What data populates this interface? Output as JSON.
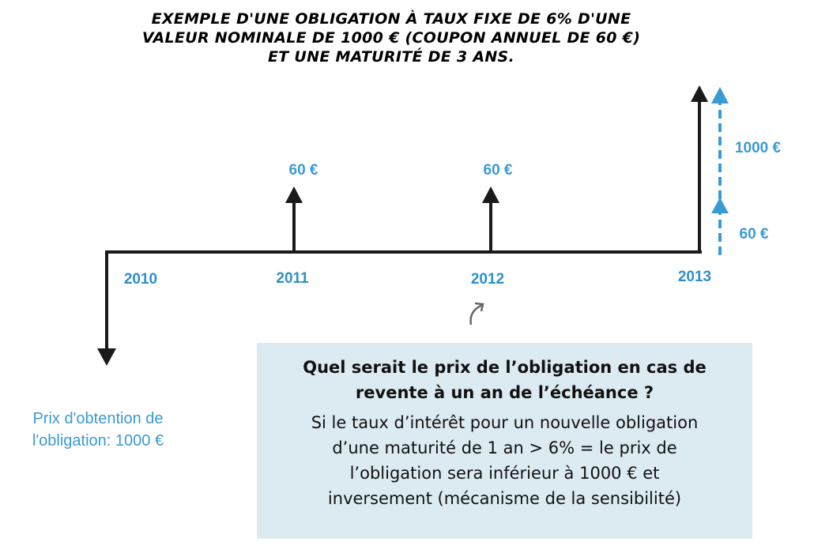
{
  "title": {
    "line1": "EXEMPLE D'UNE OBLIGATION À TAUX FIXE DE 6% D'UNE",
    "line2": "VALEUR NOMINALE DE 1000 € (COUPON ANNUEL DE 60 €)",
    "line3": "ET UNE MATURITÉ DE 3 ANS."
  },
  "timeline": {
    "years": [
      "2010",
      "2011",
      "2012",
      "2013"
    ],
    "coupon_2011": "60 €",
    "coupon_2012": "60 €",
    "coupon_2013": "60 €",
    "principal_2013": "1000 €"
  },
  "purchase": {
    "line1": "Prix d'obtention de",
    "line2": "l'obligation: 1000 €"
  },
  "question_box": {
    "question_line1": "Quel serait le prix de l’obligation en cas de",
    "question_line2": "revente à un an de l’échéance ?",
    "answer_line1": "Si le taux d’intérêt pour un nouvelle obligation",
    "answer_line2": "d’une maturité de 1 an > 6% = le prix de",
    "answer_line3": "l’obligation sera inférieur à 1000 € et",
    "answer_line4": "inversement (mécanisme de la sensibilité)"
  },
  "colors": {
    "accent": "#3a9ad4",
    "box_bg": "#dcebf2",
    "line": "#1a1a1a"
  }
}
